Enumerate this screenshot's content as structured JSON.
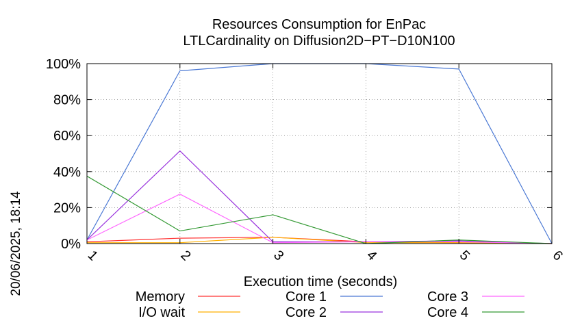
{
  "chart_data": {
    "type": "line",
    "title": [
      "Resources Consumption for EnPac",
      "LTLCardinality on Diffusion2D−PT−D10N100"
    ],
    "side_label": "20/06/2025, 18:14",
    "xlabel": "Execution time (seconds)",
    "ylabel": "",
    "x": [
      1,
      2,
      3,
      4,
      5,
      6
    ],
    "xlim": [
      1,
      6
    ],
    "ylim": [
      0,
      100
    ],
    "x_ticks": [
      "1",
      "2",
      "3",
      "4",
      "5",
      "6"
    ],
    "y_ticks": [
      "0%",
      "20%",
      "40%",
      "60%",
      "80%",
      "100%"
    ],
    "y_tick_values": [
      0,
      20,
      40,
      60,
      80,
      100
    ],
    "grid": true,
    "legend_position": "bottom",
    "series": [
      {
        "name": "Memory",
        "color": "#ff3333",
        "values": [
          1,
          3,
          3.5,
          1,
          0.5,
          0
        ]
      },
      {
        "name": "I/O wait",
        "color": "#ffb000",
        "values": [
          0.5,
          0.5,
          3.5,
          0.5,
          0.5,
          0
        ]
      },
      {
        "name": "Core 1",
        "color": "#4a78d4",
        "values": [
          2,
          96,
          100,
          100,
          97,
          0
        ]
      },
      {
        "name": "Core 2",
        "color": "#9933dd",
        "values": [
          2,
          51.5,
          1,
          1,
          1.5,
          0
        ]
      },
      {
        "name": "Core 3",
        "color": "#ff66ff",
        "values": [
          2,
          27.5,
          0.5,
          1,
          1,
          0
        ]
      },
      {
        "name": "Core 4",
        "color": "#339933",
        "values": [
          37.5,
          7,
          16,
          0,
          2,
          0
        ]
      }
    ]
  }
}
